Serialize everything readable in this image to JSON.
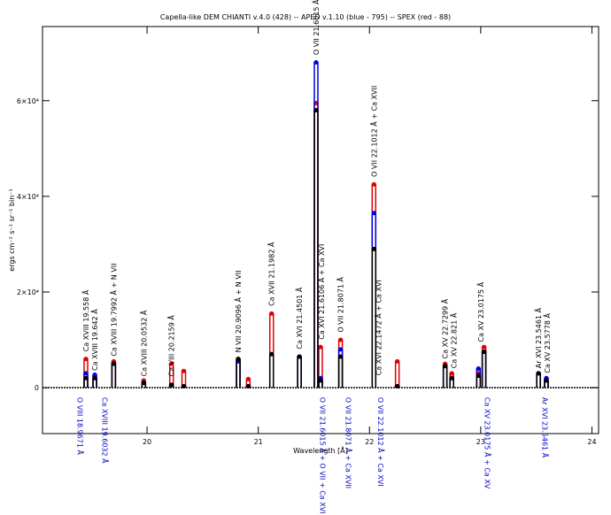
{
  "chart_data": {
    "type": "stem",
    "title": "Capella-like DEM  CHIANTI v.4.0 (428) -- APED v.1.10 (blue - 795) -- SPEX (red - 88)",
    "xlabel": "Wavelength [Å]",
    "ylabel": "ergs cm⁻² s⁻¹ sr⁻¹ bin⁻¹",
    "xlim": [
      19.06,
      24.06
    ],
    "ylim": [
      -9600,
      75500
    ],
    "xticks": [
      20,
      21,
      22,
      23,
      24
    ],
    "yticks": [
      0,
      {
        "value": 20000,
        "label": "2×10⁴"
      },
      {
        "value": 40000,
        "label": "4×10⁴"
      },
      {
        "value": 60000,
        "label": "6×10⁴"
      }
    ],
    "x": [
      19.45,
      19.53,
      19.7,
      19.97,
      20.22,
      20.33,
      20.82,
      20.91,
      21.12,
      21.37,
      21.52,
      21.56,
      21.74,
      22.04,
      22.25,
      22.68,
      22.74,
      22.98,
      23.03,
      23.52,
      23.59
    ],
    "series": [
      {
        "color": "#e00000",
        "values": [
          6000,
          2000,
          5500,
          1500,
          5000,
          3500,
          6000,
          1800,
          15500,
          6500,
          59500,
          8500,
          10000,
          42500,
          5500,
          5000,
          3000,
          3000,
          8500,
          3000,
          1500
        ]
      },
      {
        "color": "#0000e0",
        "values": [
          3000,
          2700,
          5000,
          1000,
          600,
          300,
          5500,
          300,
          7000,
          6500,
          68000,
          2000,
          8000,
          36500,
          300,
          4500,
          2000,
          4000,
          7500,
          3000,
          2000
        ]
      },
      {
        "color": "#000000",
        "values": [
          2000,
          2000,
          5000,
          1000,
          600,
          300,
          6000,
          300,
          7000,
          6500,
          58000,
          1500,
          6500,
          29000,
          300,
          4500,
          2000,
          2500,
          7500,
          3000,
          1500
        ]
      }
    ],
    "annotations_above": [
      {
        "text": "Ca XVIII 19.558 Å",
        "x": 19.45,
        "y": 7000
      },
      {
        "text": "Ca XVIII 19.642 Å",
        "x": 19.53,
        "y": 3000
      },
      {
        "text": "Ca XVIII 19.7992 Å + N VII",
        "x": 19.7,
        "y": 6000
      },
      {
        "text": "Ca XVIII 20.0532 Å",
        "x": 19.97,
        "y": 1800
      },
      {
        "text": "Ca VIII 20.2159 Å",
        "x": 20.22,
        "y": 1800
      },
      {
        "text": "N VII 20.9096 Å + N VII",
        "x": 20.82,
        "y": 6800
      },
      {
        "text": "Ca XVII 21.1982 Å",
        "x": 21.12,
        "y": 16500
      },
      {
        "text": "Ca XVI 21.4501 Å",
        "x": 21.37,
        "y": 7500
      },
      {
        "text": "O VII 21.6015 Å",
        "x": 21.52,
        "y": 69000
      },
      {
        "text": "Ca XVI 21.6106 Å + Ca XVI",
        "x": 21.57,
        "y": 9500
      },
      {
        "text": "O VII 21.8071 Å",
        "x": 21.74,
        "y": 11000
      },
      {
        "text": "O VII 22.1012 Å + Ca XVII",
        "x": 22.04,
        "y": 43500
      },
      {
        "text": "Ca XVI 22.1472 Å + Ca XVI",
        "x": 22.08,
        "y": 2000
      },
      {
        "text": "Ca XV 22.7299 Å",
        "x": 22.68,
        "y": 5500
      },
      {
        "text": "Ca XV 22.821 Å",
        "x": 22.76,
        "y": 3500
      },
      {
        "text": "Ca XV 23.0175 Å",
        "x": 23.0,
        "y": 9000
      },
      {
        "text": "Ar XVI 23.5461 Å",
        "x": 23.52,
        "y": 3500
      },
      {
        "text": "Ca XV 23.5778 Å",
        "x": 23.6,
        "y": 2500
      }
    ],
    "annotations_below": [
      {
        "text": "O VIII 18.9671 Å",
        "x": 19.4,
        "y": -2000
      },
      {
        "text": "Ca XVIII 19.6032 Å",
        "x": 19.62,
        "y": -2000
      },
      {
        "text": "O VII 21.6015 Å + O VII + Ca XVI",
        "x": 21.58,
        "y": -2000
      },
      {
        "text": "O VII 21.8071 Å + Ca XVII",
        "x": 21.81,
        "y": -2000
      },
      {
        "text": "O VII 22.1012 Å + Ca XVI",
        "x": 22.1,
        "y": -2000
      },
      {
        "text": "Ca XV 23.0175 Å + Ca XV",
        "x": 23.06,
        "y": -2000
      },
      {
        "text": "Ar XVI 23.5461 Å",
        "x": 23.58,
        "y": -2000
      }
    ]
  }
}
